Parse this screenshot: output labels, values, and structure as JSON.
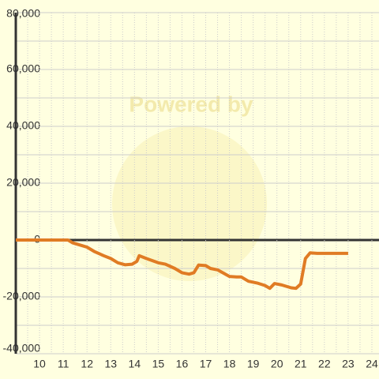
{
  "chart_data": {
    "type": "line",
    "watermark": "Powered by",
    "xlim": [
      9,
      24.3
    ],
    "ylim": [
      -40000,
      80000
    ],
    "xticks": [
      10,
      11,
      12,
      13,
      14,
      15,
      16,
      17,
      18,
      19,
      20,
      21,
      22,
      23,
      24
    ],
    "xminorticks": [
      9.5,
      10.5,
      11.5,
      12.5,
      13.5,
      14.5,
      15.5,
      16.5,
      17.5,
      18.5,
      19.5,
      20.5,
      21.5,
      22.5,
      23.5
    ],
    "yticks": [
      {
        "value": -40000,
        "label": "-40,000"
      },
      {
        "value": -20000,
        "label": "-20,000"
      },
      0,
      {
        "value": 20000,
        "label": "20,000"
      },
      {
        "value": 40000,
        "label": "40,000"
      },
      {
        "value": 60000,
        "label": "60,000"
      },
      {
        "value": 80000,
        "label": "80,000"
      }
    ],
    "yminorticks": [
      -30000,
      -10000,
      10000,
      30000,
      50000,
      70000
    ],
    "grid": true,
    "series": [
      {
        "color": "#e07b24",
        "x": [
          9.0,
          11.2,
          11.4,
          11.8,
          12.0,
          12.3,
          12.7,
          13.0,
          13.3,
          13.6,
          13.9,
          14.1,
          14.2,
          14.5,
          15.0,
          15.3,
          15.7,
          16.0,
          16.3,
          16.5,
          16.7,
          17.0,
          17.2,
          17.5,
          18.0,
          18.3,
          18.5,
          18.8,
          19.2,
          19.5,
          19.7,
          19.9,
          20.2,
          20.6,
          20.8,
          21.0,
          21.2,
          21.4,
          21.7,
          22.0,
          23.0
        ],
        "values": [
          0,
          0,
          -1000,
          -2000,
          -2500,
          -4000,
          -5500,
          -6500,
          -8000,
          -8700,
          -8500,
          -7500,
          -5500,
          -6500,
          -8000,
          -8500,
          -10000,
          -11500,
          -12000,
          -11500,
          -8800,
          -9000,
          -10000,
          -10500,
          -12800,
          -13000,
          -13000,
          -14500,
          -15200,
          -16000,
          -17000,
          -15300,
          -15800,
          -16800,
          -17000,
          -15500,
          -6500,
          -4500,
          -4700,
          -4700,
          -4700
        ]
      }
    ]
  }
}
